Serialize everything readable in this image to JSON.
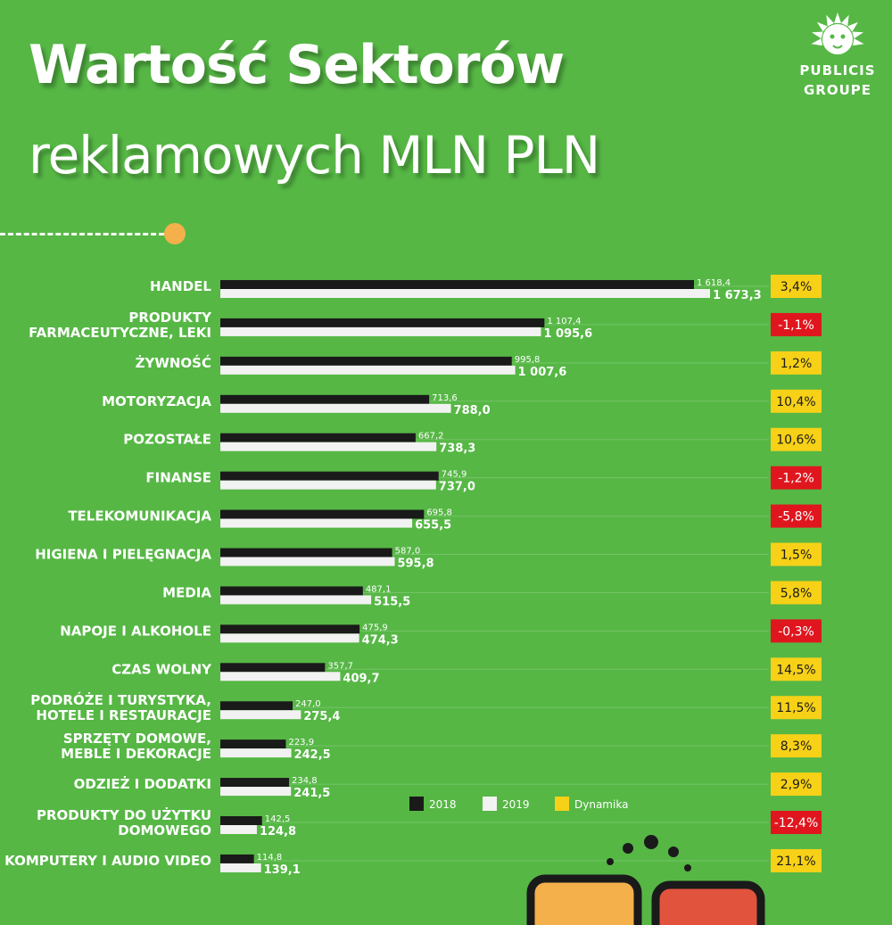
{
  "header": {
    "title_line1": "Wartość Sektorów",
    "title_line2": "reklamowych MLN PLN"
  },
  "logo": {
    "line1": "PUBLICIS",
    "line2": "GROUPE",
    "icon": "lion-head-icon"
  },
  "colors": {
    "background": "#56b745",
    "bar_2018": "#1a1a1a",
    "bar_2019": "#f2f2f2",
    "dynamics_positive": "#f7d117",
    "dynamics_negative": "#e0161e",
    "accent_dot": "#f3b04b"
  },
  "chart_data": {
    "type": "bar",
    "orientation": "horizontal",
    "categories": [
      "HANDEL",
      "PRODUKTY\nFARMACEUTYCZNE, LEKI",
      "ŻYWNOŚĆ",
      "MOTORYZACJA",
      "POZOSTAŁE",
      "FINANSE",
      "TELEKOMUNIKACJA",
      "HIGIENA I PIELĘGNACJA",
      "MEDIA",
      "NAPOJE I ALKOHOLE",
      "CZAS WOLNY",
      "PODRÓŻE I TURYSTYKA,\nHOTELE I RESTAURACJE",
      "SPRZĘTY DOMOWE,\nMEBLE I DEKORACJE",
      "ODZIEŻ I DODATKI",
      "PRODUKTY DO UŻYTKU\nDOMOWEGO",
      "KOMPUTERY I AUDIO VIDEO"
    ],
    "series": [
      {
        "name": "2018",
        "values": [
          1618.4,
          1107.4,
          995.8,
          713.6,
          667.2,
          745.9,
          695.8,
          587.0,
          487.1,
          475.9,
          357.7,
          247.0,
          223.9,
          234.8,
          142.5,
          114.8
        ],
        "labels": [
          "1 618,4",
          "1 107,4",
          "995,8",
          "713,6",
          "667,2",
          "745,9",
          "695,8",
          "587,0",
          "487,1",
          "475,9",
          "357,7",
          "247,0",
          "223,9",
          "234,8",
          "142,5",
          "114,8"
        ]
      },
      {
        "name": "2019",
        "values": [
          1673.3,
          1095.6,
          1007.6,
          788.0,
          738.3,
          737.0,
          655.5,
          595.8,
          515.5,
          474.3,
          409.7,
          275.4,
          242.5,
          241.5,
          124.8,
          139.1
        ],
        "labels": [
          "1 673,3",
          "1 095,6",
          "1 007,6",
          "788,0",
          "738,3",
          "737,0",
          "655,5",
          "595,8",
          "515,5",
          "474,3",
          "409,7",
          "275,4",
          "242,5",
          "241,5",
          "124,8",
          "139,1"
        ]
      }
    ],
    "dynamics": {
      "name": "Dynamika",
      "values": [
        3.4,
        -1.1,
        1.2,
        10.4,
        10.6,
        -1.2,
        -5.8,
        1.5,
        5.8,
        -0.3,
        14.5,
        11.5,
        8.3,
        2.9,
        -12.4,
        21.1
      ],
      "labels": [
        "3,4%",
        "-1,1%",
        "1,2%",
        "10,4%",
        "10,6%",
        "-1,2%",
        "-5,8%",
        "1,5%",
        "5,8%",
        "-0,3%",
        "14,5%",
        "11,5%",
        "8,3%",
        "2,9%",
        "-12,4%",
        "21,1%"
      ]
    },
    "xlim": [
      0,
      1700
    ],
    "legend": {
      "placement": "bottom-right",
      "entries": [
        "2018",
        "2019",
        "Dynamika"
      ]
    },
    "grid": true
  }
}
